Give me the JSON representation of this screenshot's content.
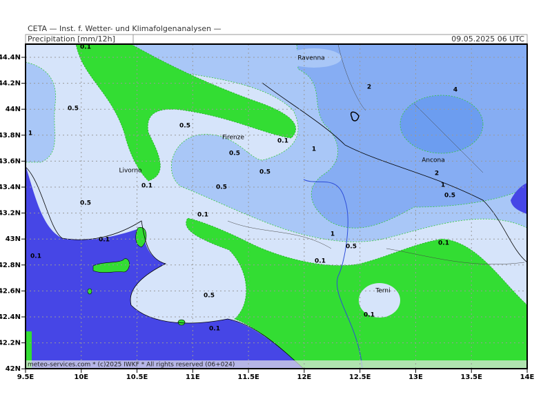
{
  "header": {
    "institute": "CETA — Inst. f. Wetter- und Klimafolgenanalysen —",
    "title": "Precipitation [mm/12h]",
    "valid_time": "09.05.2025 06 UTC"
  },
  "footer": "meteo-services.com * (c)2025 IWKF * All rights reserved (06+024)",
  "lat_labels": [
    "44.4N",
    "44.2N",
    "44N",
    "43.8N",
    "43.6N",
    "43.4N",
    "43.2N",
    "43N",
    "42.8N",
    "42.6N",
    "42.4N",
    "42.2N",
    "42N"
  ],
  "lon_labels": [
    "9.5E",
    "10E",
    "10.5E",
    "11E",
    "11.5E",
    "12E",
    "12.5E",
    "13E",
    "13.5E",
    "14E"
  ],
  "places": [
    "Ravenna",
    "Firenze",
    "Livorno",
    "Ancona",
    "Terni"
  ],
  "contour_labels": [
    "0.1",
    "0.5",
    "1",
    "0.5",
    "0.5",
    "0.1",
    "1",
    "0.5",
    "0.1",
    "0.5",
    "0.5",
    "0.1",
    "2",
    "4",
    "2",
    "1",
    "0.5",
    "1",
    "0.5",
    "0.1",
    "0.1",
    "0.1",
    "0.1",
    "0.5",
    "0.1",
    "0.1"
  ]
}
